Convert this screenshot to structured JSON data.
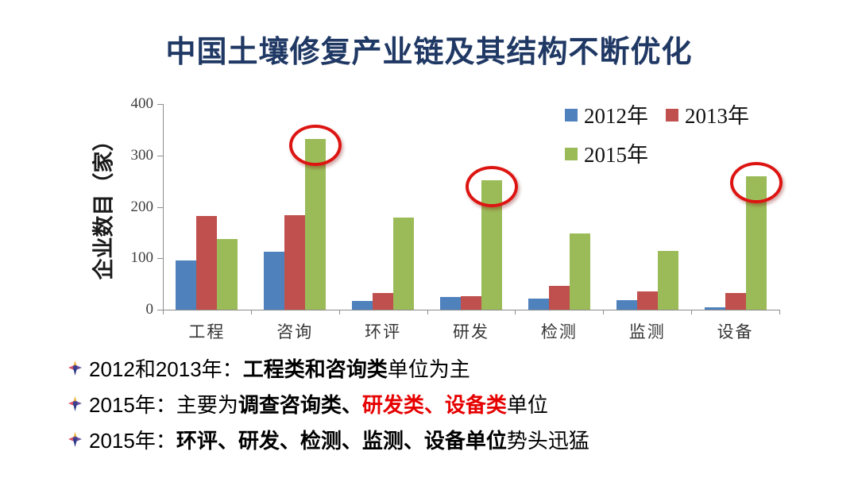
{
  "title": "中国土壤修复产业链及其结构不断优化",
  "colors": {
    "title": "#1F3864",
    "axis": "#8C8C8C",
    "tick_label": "#3d3d3d",
    "category_label": "#363636",
    "highlight_circle": "#DD1512",
    "red_text": "#E60000",
    "series_2012": "#4F81BD",
    "series_2013": "#C0504D",
    "series_2015": "#9BBB59"
  },
  "chart_data": {
    "type": "bar",
    "title": "",
    "xlabel": "",
    "ylabel": "企业数目（家）",
    "ylim": [
      0,
      400
    ],
    "yticks": [
      0,
      100,
      200,
      300,
      400
    ],
    "grid": false,
    "legend_position": "top-right",
    "categories": [
      "工程",
      "咨询",
      "环评",
      "研发",
      "检测",
      "监测",
      "设备"
    ],
    "series": [
      {
        "name": "2012年",
        "color": "#4F81BD",
        "values": [
          95,
          113,
          17,
          25,
          22,
          18,
          5
        ]
      },
      {
        "name": "2013年",
        "color": "#C0504D",
        "values": [
          182,
          184,
          32,
          27,
          47,
          36,
          32
        ]
      },
      {
        "name": "2015年",
        "color": "#9BBB59",
        "values": [
          137,
          332,
          179,
          251,
          148,
          114,
          259
        ]
      }
    ],
    "annotations": [
      {
        "shape": "ellipse",
        "category": "咨询",
        "series": "2015年"
      },
      {
        "shape": "ellipse",
        "category": "研发",
        "series": "2015年"
      },
      {
        "shape": "ellipse",
        "category": "设备",
        "series": "2015年"
      }
    ]
  },
  "legend": {
    "items": [
      {
        "label": "2012年",
        "color": "#4F81BD"
      },
      {
        "label": "2013年",
        "color": "#C0504D"
      },
      {
        "label": "2015年",
        "color": "#9BBB59"
      }
    ]
  },
  "bullets": [
    {
      "segments": [
        {
          "text": "2012和2013年：",
          "bold": false,
          "red": false
        },
        {
          "text": "工程类和咨询类",
          "bold": true,
          "red": false
        },
        {
          "text": "单位为主",
          "bold": false,
          "red": false
        }
      ]
    },
    {
      "segments": [
        {
          "text": "2015年：主要为",
          "bold": false,
          "red": false
        },
        {
          "text": "调查咨询类、",
          "bold": true,
          "red": false
        },
        {
          "text": "研发类、设备类",
          "bold": true,
          "red": true
        },
        {
          "text": "单位",
          "bold": false,
          "red": false
        }
      ]
    },
    {
      "segments": [
        {
          "text": "2015年：",
          "bold": false,
          "red": false
        },
        {
          "text": "环评、研发、检测、监测、设备单位",
          "bold": true,
          "red": false
        },
        {
          "text": "势头迅猛",
          "bold": false,
          "red": false
        }
      ]
    }
  ]
}
